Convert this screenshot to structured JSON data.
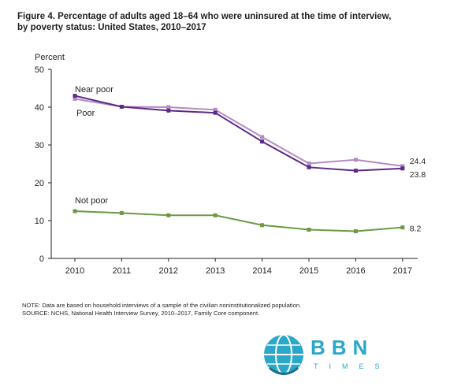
{
  "header": {
    "title_line1": "Figure 4. Percentage of adults aged 18–64 who were uninsured at the time of interview,",
    "title_line2": "by poverty status: United States, 2010–2017"
  },
  "chart_data": {
    "type": "line",
    "title": "Figure 4. Percentage of adults aged 18–64 who were uninsured at the time of interview, by poverty status: United States, 2010–2017",
    "ylabel": "Percent",
    "xlabel": "",
    "ylim": [
      0,
      50
    ],
    "yticks": [
      0,
      10,
      20,
      30,
      40,
      50
    ],
    "x": [
      "2010",
      "2011",
      "2012",
      "2013",
      "2014",
      "2015",
      "2016",
      "2017"
    ],
    "grid": false,
    "legend": "inline labels",
    "series": [
      {
        "name": "Near poor",
        "values": [
          42.2,
          40.1,
          40.0,
          39.3,
          32.1,
          25.1,
          26.1,
          24.4
        ],
        "color": "#b58ac4",
        "end_label": "24.4"
      },
      {
        "name": "Poor",
        "values": [
          43.0,
          40.1,
          39.1,
          38.5,
          30.9,
          24.1,
          23.2,
          23.8
        ],
        "color": "#5b2a86",
        "end_label": "23.8"
      },
      {
        "name": "Not poor",
        "values": [
          12.5,
          12.0,
          11.4,
          11.4,
          8.8,
          7.6,
          7.2,
          8.2
        ],
        "color": "#6b9a45",
        "end_label": "8.2"
      }
    ]
  },
  "notes": {
    "note": "NOTE: Data are based on household interviews of a sample of the civilian noninstitutionalized population.",
    "source": "SOURCE: NCHS, National Health Interview Survey, 2010–2017, Family Core component."
  },
  "watermark": {
    "brand": "BBN",
    "sub": "TIMES",
    "color": "#2aa7c9"
  }
}
